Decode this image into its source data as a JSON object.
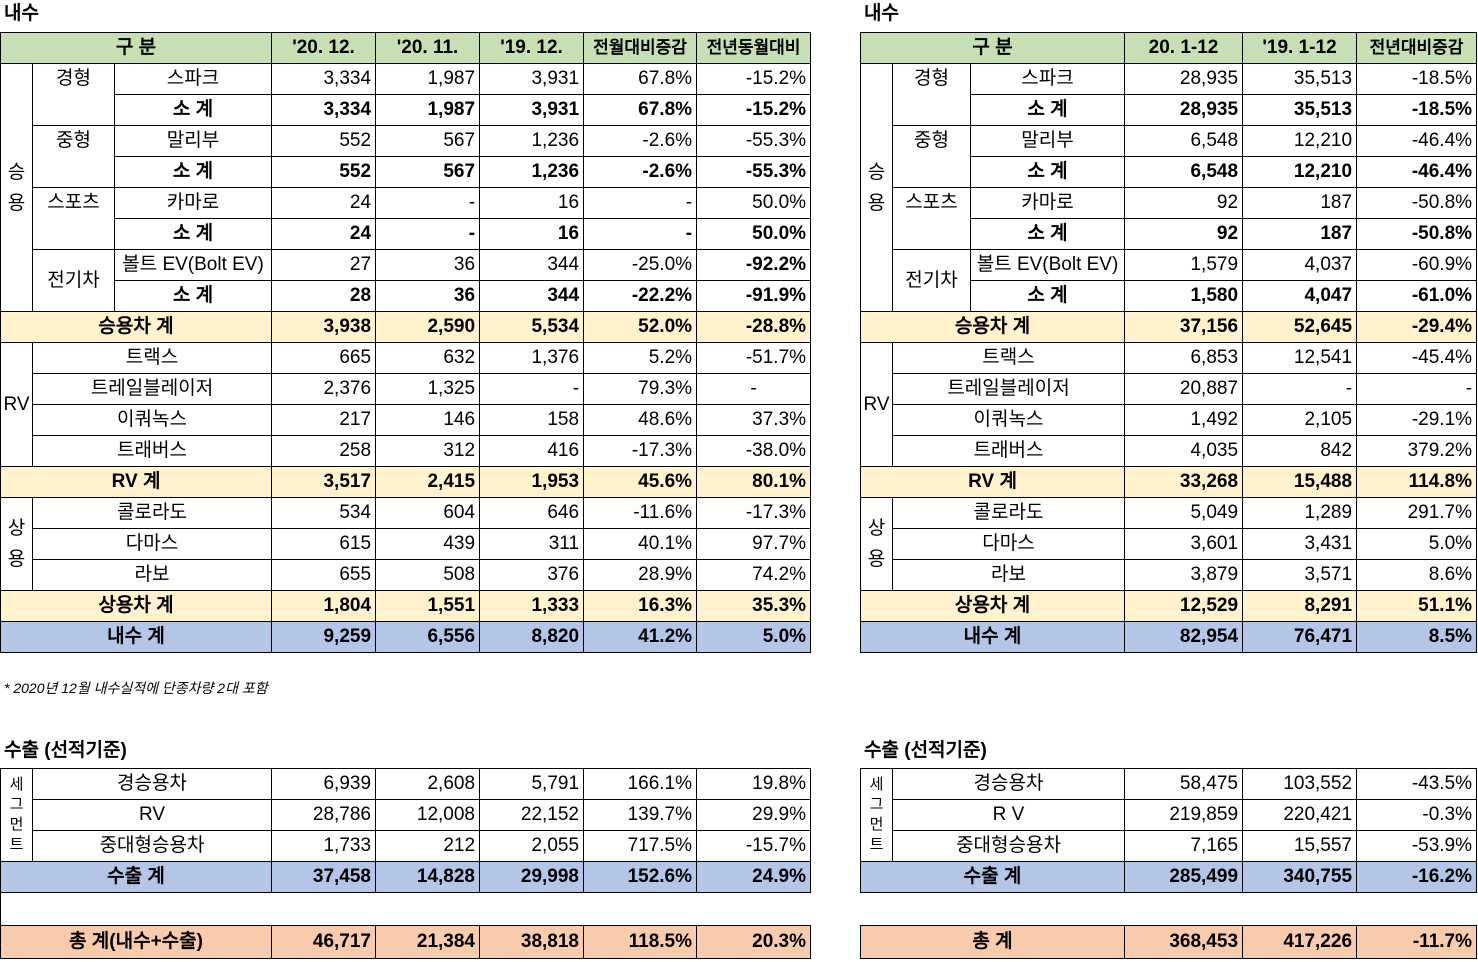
{
  "domestic_title": "내수",
  "export_title": "수출 (선적기준)",
  "note": "* 2020년 12월 내수실적에 단종차량 2대 포함",
  "left": {
    "header": {
      "gubun": "구  분",
      "c1": "'20. 12.",
      "c2": "'20. 11.",
      "c3": "'19. 12.",
      "c4": "전월대비증감",
      "c5": "전년동월대비"
    },
    "group_passenger": "승용",
    "group_rv": "RV",
    "group_commercial": "상용",
    "passenger": [
      {
        "sub": "경형",
        "name": "스파크",
        "v": [
          "3,334",
          "1,987",
          "3,931",
          "67.8%",
          "-15.2%"
        ],
        "sub_name": "소  계",
        "s": [
          "3,334",
          "1,987",
          "3,931",
          "67.8%",
          "-15.2%"
        ]
      },
      {
        "sub": "중형",
        "name": "말리부",
        "v": [
          "552",
          "567",
          "1,236",
          "-2.6%",
          "-55.3%"
        ],
        "sub_name": "소  계",
        "s": [
          "552",
          "567",
          "1,236",
          "-2.6%",
          "-55.3%"
        ]
      },
      {
        "sub": "스포츠",
        "name": "카마로",
        "v": [
          "24",
          "-",
          "16",
          "-",
          "50.0%"
        ],
        "sub_name": "소  계",
        "s": [
          "24",
          "-",
          "16",
          "-",
          "50.0%"
        ]
      },
      {
        "sub": "전기차",
        "name": "볼트 EV(Bolt EV)",
        "v": [
          "27",
          "36",
          "344",
          "-25.0%",
          "-92.2%"
        ],
        "sub_name": "소  계",
        "s": [
          "28",
          "36",
          "344",
          "-22.2%",
          "-91.9%"
        ]
      }
    ],
    "passenger_total": {
      "label": "승용차 계",
      "v": [
        "3,938",
        "2,590",
        "5,534",
        "52.0%",
        "-28.8%"
      ]
    },
    "rv": [
      {
        "name": "트랙스",
        "v": [
          "665",
          "632",
          "1,376",
          "5.2%",
          "-51.7%"
        ]
      },
      {
        "name": "트레일블레이저",
        "v": [
          "2,376",
          "1,325",
          "-",
          "79.3%",
          "-"
        ]
      },
      {
        "name": "이쿼녹스",
        "v": [
          "217",
          "146",
          "158",
          "48.6%",
          "37.3%"
        ]
      },
      {
        "name": "트래버스",
        "v": [
          "258",
          "312",
          "416",
          "-17.3%",
          "-38.0%"
        ]
      }
    ],
    "rv_total": {
      "label": "RV 계",
      "v": [
        "3,517",
        "2,415",
        "1,953",
        "45.6%",
        "80.1%"
      ]
    },
    "commercial": [
      {
        "name": "콜로라도",
        "v": [
          "534",
          "604",
          "646",
          "-11.6%",
          "-17.3%"
        ]
      },
      {
        "name": "다마스",
        "v": [
          "615",
          "439",
          "311",
          "40.1%",
          "97.7%"
        ]
      },
      {
        "name": "라보",
        "v": [
          "655",
          "508",
          "376",
          "28.9%",
          "74.2%"
        ]
      }
    ],
    "commercial_total": {
      "label": "상용차 계",
      "v": [
        "1,804",
        "1,551",
        "1,333",
        "16.3%",
        "35.3%"
      ]
    },
    "domestic_total": {
      "label": "내수 계",
      "v": [
        "9,259",
        "6,556",
        "8,820",
        "41.2%",
        "5.0%"
      ]
    },
    "export_group": "세그먼트",
    "export": [
      {
        "name": "경승용차",
        "v": [
          "6,939",
          "2,608",
          "5,791",
          "166.1%",
          "19.8%"
        ]
      },
      {
        "name": "RV",
        "v": [
          "28,786",
          "12,008",
          "22,152",
          "139.7%",
          "29.9%"
        ]
      },
      {
        "name": "중대형승용차",
        "v": [
          "1,733",
          "212",
          "2,055",
          "717.5%",
          "-15.7%"
        ]
      }
    ],
    "export_total": {
      "label": "수출 계",
      "v": [
        "37,458",
        "14,828",
        "29,998",
        "152.6%",
        "24.9%"
      ]
    },
    "grand_total": {
      "label": "총  계(내수+수출)",
      "v": [
        "46,717",
        "21,384",
        "38,818",
        "118.5%",
        "20.3%"
      ]
    }
  },
  "right": {
    "header": {
      "gubun": "구  분",
      "c1": "20. 1-12",
      "c2": "'19. 1-12",
      "c3": "전년대비증감"
    },
    "group_passenger": "승용",
    "group_rv": "RV",
    "group_commercial": "상용",
    "passenger": [
      {
        "sub": "경형",
        "name": "스파크",
        "v": [
          "28,935",
          "35,513",
          "-18.5%"
        ],
        "sub_name": "소  계",
        "s": [
          "28,935",
          "35,513",
          "-18.5%"
        ]
      },
      {
        "sub": "중형",
        "name": "말리부",
        "v": [
          "6,548",
          "12,210",
          "-46.4%"
        ],
        "sub_name": "소  계",
        "s": [
          "6,548",
          "12,210",
          "-46.4%"
        ]
      },
      {
        "sub": "스포츠",
        "name": "카마로",
        "v": [
          "92",
          "187",
          "-50.8%"
        ],
        "sub_name": "소  계",
        "s": [
          "92",
          "187",
          "-50.8%"
        ]
      },
      {
        "sub": "전기차",
        "name": "볼트 EV(Bolt EV)",
        "v": [
          "1,579",
          "4,037",
          "-60.9%"
        ],
        "sub_name": "소  계",
        "s": [
          "1,580",
          "4,047",
          "-61.0%"
        ]
      }
    ],
    "passenger_total": {
      "label": "승용차 계",
      "v": [
        "37,156",
        "52,645",
        "-29.4%"
      ]
    },
    "rv": [
      {
        "name": "트랙스",
        "v": [
          "6,853",
          "12,541",
          "-45.4%"
        ]
      },
      {
        "name": "트레일블레이저",
        "v": [
          "20,887",
          "-",
          "-"
        ]
      },
      {
        "name": "이쿼녹스",
        "v": [
          "1,492",
          "2,105",
          "-29.1%"
        ]
      },
      {
        "name": "트래버스",
        "v": [
          "4,035",
          "842",
          "379.2%"
        ]
      }
    ],
    "rv_total": {
      "label": "RV 계",
      "v": [
        "33,268",
        "15,488",
        "114.8%"
      ]
    },
    "commercial": [
      {
        "name": "콜로라도",
        "v": [
          "5,049",
          "1,289",
          "291.7%"
        ]
      },
      {
        "name": "다마스",
        "v": [
          "3,601",
          "3,431",
          "5.0%"
        ]
      },
      {
        "name": "라보",
        "v": [
          "3,879",
          "3,571",
          "8.6%"
        ]
      }
    ],
    "commercial_total": {
      "label": "상용차 계",
      "v": [
        "12,529",
        "8,291",
        "51.1%"
      ]
    },
    "domestic_total": {
      "label": "내수 계",
      "v": [
        "82,954",
        "76,471",
        "8.5%"
      ]
    },
    "export_group": "세그먼트",
    "export": [
      {
        "name": "경승용차",
        "v": [
          "58,475",
          "103,552",
          "-43.5%"
        ]
      },
      {
        "name": "R V",
        "v": [
          "219,859",
          "220,421",
          "-0.3%"
        ]
      },
      {
        "name": "중대형승용차",
        "v": [
          "7,165",
          "15,557",
          "-53.9%"
        ]
      }
    ],
    "export_total": {
      "label": "수출 계",
      "v": [
        "285,499",
        "340,755",
        "-16.2%"
      ]
    },
    "grand_total": {
      "label": "총  계",
      "v": [
        "368,453",
        "417,226",
        "-11.7%"
      ]
    }
  }
}
